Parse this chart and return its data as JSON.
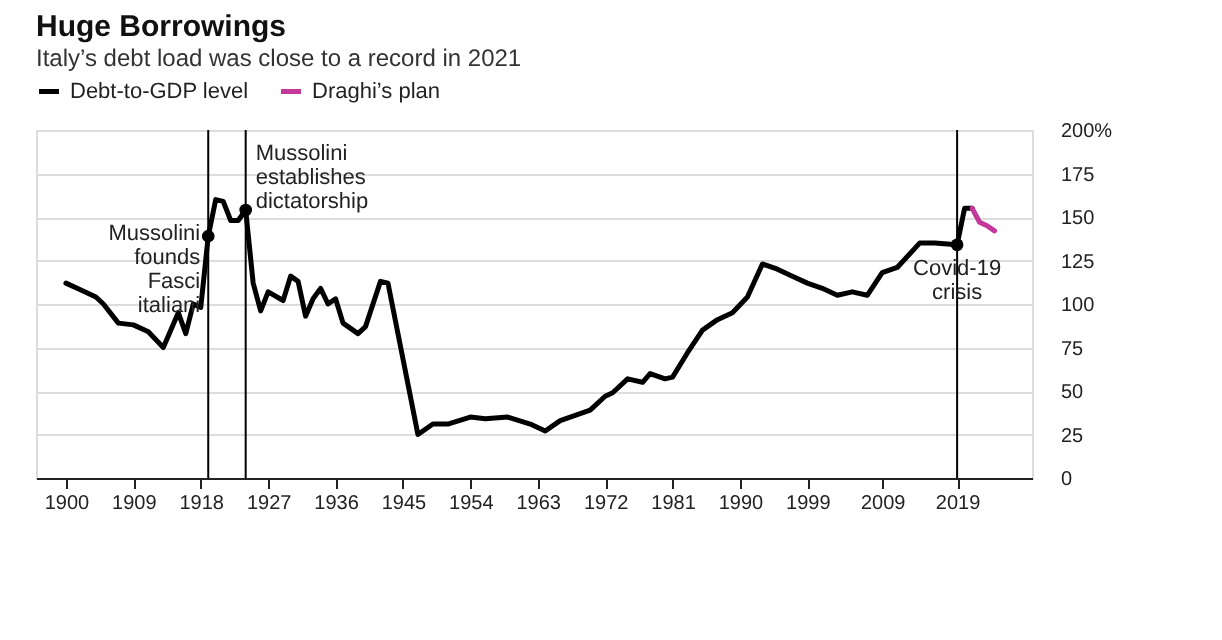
{
  "chart_data": {
    "type": "line",
    "title": "Huge Borrowings",
    "subtitle": "Italy’s debt load was close to a record in 2021",
    "series": [
      {
        "name": "Debt-to-GDP level",
        "color": "#000000",
        "x": [
          1900,
          1902,
          1904,
          1905,
          1907,
          1909,
          1911,
          1913,
          1915,
          1916,
          1917,
          1918,
          1919,
          1920,
          1921,
          1922,
          1923,
          1924,
          1925,
          1926,
          1927,
          1929,
          1930,
          1931,
          1932,
          1933,
          1934,
          1935,
          1936,
          1937,
          1939,
          1940,
          1942,
          1943,
          1947,
          1949,
          1951,
          1954,
          1956,
          1959,
          1962,
          1964,
          1966,
          1968,
          1970,
          1972,
          1973,
          1975,
          1977,
          1978,
          1980,
          1981,
          1983,
          1985,
          1987,
          1989,
          1991,
          1993,
          1995,
          1997,
          1999,
          2001,
          2003,
          2005,
          2007,
          2009,
          2011,
          2014,
          2016,
          2019,
          2020,
          2021
        ],
        "values": [
          112,
          108,
          104,
          100,
          89,
          88,
          84,
          75,
          95,
          83,
          100,
          98,
          139,
          160,
          159,
          148,
          148,
          154,
          112,
          96,
          107,
          102,
          116,
          113,
          93,
          103,
          109,
          100,
          103,
          89,
          83,
          87,
          113,
          112,
          25,
          31,
          31,
          35,
          34,
          35,
          31,
          27,
          33,
          36,
          39,
          47,
          49,
          57,
          55,
          60,
          57,
          58,
          72,
          85,
          91,
          95,
          104,
          123,
          120,
          116,
          112,
          109,
          105,
          107,
          105,
          118,
          121,
          135,
          135,
          134,
          155,
          155
        ]
      },
      {
        "name": "Draghi’s plan",
        "color": "#c2399b",
        "x": [
          2021,
          2022,
          2023,
          2024
        ],
        "values": [
          155,
          147,
          145,
          142
        ]
      },
      {
        "type": "scatter",
        "color": "#000000",
        "x": [
          1919,
          1924,
          2019
        ],
        "values": [
          139,
          154,
          134
        ]
      }
    ],
    "xlim": [
      1896,
      2029
    ],
    "xticks": [
      1900,
      1909,
      1918,
      1927,
      1936,
      1945,
      1954,
      1963,
      1972,
      1981,
      1990,
      1999,
      2009,
      2019
    ],
    "ylim": [
      0,
      200
    ],
    "yticks": [
      0,
      25,
      50,
      75,
      100,
      125,
      150,
      175,
      {
        "value": 200,
        "label": "200%"
      }
    ],
    "ref_lines": [
      {
        "axis": "x",
        "value": 1919,
        "color": "#000000"
      },
      {
        "axis": "x",
        "value": 1924,
        "color": "#000000"
      },
      {
        "axis": "x",
        "value": 2019,
        "color": "#000000"
      }
    ],
    "annotations": [
      {
        "text": "Mussolini\nfounds\nFasci\nitaliani",
        "x": 1919,
        "y": 139
      },
      {
        "text": "Mussolini\nestablishes\ndictatorship",
        "x": 1924,
        "y": 154
      },
      {
        "text": "Covid-19\ncrisis",
        "x": 2019,
        "y": 134
      }
    ],
    "grid": "y",
    "legend": "top left"
  }
}
